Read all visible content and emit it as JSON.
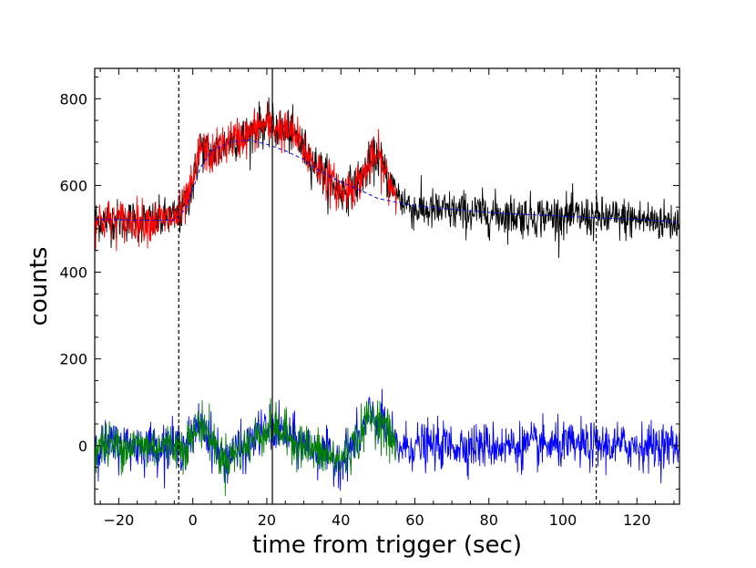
{
  "chart_data": {
    "type": "line",
    "title": "",
    "xlabel": "time from trigger (sec)",
    "ylabel": "counts",
    "xlim": [
      -26.5,
      131.5
    ],
    "ylim": [
      -135,
      870
    ],
    "xticks": [
      -20,
      0,
      20,
      40,
      60,
      80,
      100,
      120
    ],
    "yticks": [
      0,
      200,
      400,
      600,
      800
    ],
    "grid": false,
    "legend": "none",
    "vlines": [
      {
        "x": -3.8,
        "style": "dashed",
        "color": "#000000"
      },
      {
        "x": 21.5,
        "style": "solid",
        "color": "#000000"
      },
      {
        "x": 109.0,
        "style": "dashed",
        "color": "#000000"
      }
    ],
    "series": [
      {
        "role": "observed light curve",
        "color": "#000000",
        "x_range": [
          -26.5,
          131.5
        ],
        "noise_sigma": 24,
        "x": [
          -26.5,
          -10,
          -5,
          -3,
          0,
          2,
          5,
          10,
          15,
          18,
          22,
          27,
          32,
          37,
          40,
          44,
          47,
          50,
          53,
          56,
          60,
          70,
          80,
          90,
          100,
          110,
          120,
          131.5
        ],
        "y": [
          520,
          518,
          525,
          535,
          600,
          690,
          670,
          705,
          715,
          740,
          735,
          720,
          660,
          610,
          585,
          600,
          640,
          670,
          610,
          570,
          545,
          540,
          535,
          530,
          530,
          525,
          522,
          515
        ]
      },
      {
        "role": "high time resolution light curve",
        "color": "#ff0000",
        "x_range": [
          -26.5,
          55
        ],
        "noise_sigma": 24,
        "x": [
          -26.5,
          -10,
          -5,
          -3,
          0,
          2,
          5,
          10,
          15,
          18,
          22,
          27,
          32,
          37,
          40,
          44,
          47,
          50,
          53,
          55
        ],
        "y": [
          520,
          518,
          525,
          535,
          600,
          690,
          670,
          705,
          715,
          740,
          735,
          720,
          660,
          610,
          585,
          600,
          640,
          670,
          610,
          580
        ]
      },
      {
        "role": "smooth background model",
        "color": "#0000ff",
        "style": "dashed",
        "x": [
          -26.5,
          -15,
          -5,
          -2,
          0,
          2,
          5,
          10,
          15,
          20,
          25,
          30,
          35,
          40,
          45,
          50,
          60,
          70,
          80,
          90,
          100,
          110,
          120,
          131.5
        ],
        "y": [
          522,
          520,
          520,
          545,
          590,
          640,
          680,
          700,
          705,
          695,
          680,
          660,
          630,
          608,
          590,
          570,
          553,
          545,
          538,
          533,
          529,
          525,
          522,
          515
        ]
      },
      {
        "role": "residuals full range",
        "color": "#0000ff",
        "x_range": [
          -26.5,
          131.5
        ],
        "noise_sigma": 26,
        "x": [
          -26.5,
          -10,
          -5,
          -2,
          0,
          2,
          4,
          8,
          12,
          15,
          18,
          22,
          26,
          30,
          35,
          40,
          45,
          48,
          51,
          55,
          60,
          80,
          100,
          120,
          131.5
        ],
        "y": [
          0,
          0,
          0,
          0,
          20,
          55,
          30,
          -30,
          -15,
          0,
          30,
          40,
          20,
          0,
          -20,
          -35,
          20,
          70,
          55,
          -5,
          0,
          0,
          0,
          0,
          0
        ]
      },
      {
        "role": "residuals high resolution",
        "color": "#008000",
        "x_range": [
          -26.5,
          55
        ],
        "noise_sigma": 26,
        "x": [
          -26.5,
          -10,
          -5,
          -2,
          0,
          2,
          4,
          8,
          12,
          15,
          18,
          22,
          26,
          30,
          35,
          40,
          45,
          48,
          51,
          55
        ],
        "y": [
          0,
          0,
          0,
          0,
          20,
          55,
          30,
          -30,
          -15,
          0,
          30,
          40,
          20,
          0,
          -20,
          -35,
          20,
          70,
          55,
          -5
        ]
      }
    ]
  }
}
